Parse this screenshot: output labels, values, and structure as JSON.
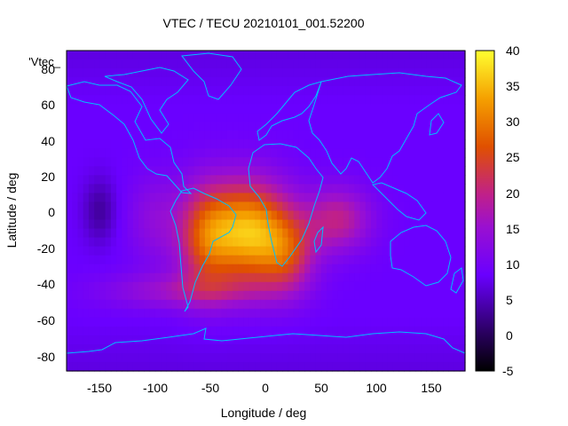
{
  "chart_data": {
    "type": "heatmap",
    "title": "VTEC / TECU 20210101_001.52200",
    "xlabel": "Longitude / deg",
    "ylabel": "Latitude / deg",
    "key_label": "'Vtec_",
    "xlim": [
      -180,
      180
    ],
    "ylim": [
      -90,
      90
    ],
    "x_ticks": [
      -150,
      -100,
      -50,
      0,
      50,
      100,
      150
    ],
    "y_ticks": [
      -80,
      -60,
      -40,
      -20,
      0,
      20,
      40,
      60,
      80
    ],
    "colorbar": {
      "range": [
        -5,
        40
      ],
      "ticks": [
        -5,
        0,
        5,
        10,
        15,
        20,
        25,
        30,
        35,
        40
      ],
      "palette": "gnuplot-rgbformulae-7-5-15",
      "colors": {
        "low": "#000000",
        "mid_low": "#6a00ff",
        "mid": "#c0208a",
        "mid_high": "#e05000",
        "high": "#ffff30"
      }
    },
    "field": {
      "description_units": "TECU",
      "background_value": 8.5,
      "features": [
        {
          "name": "atlantic_crest",
          "lon": -15,
          "lat": -12,
          "amplitude": 26
        },
        {
          "name": "south_america",
          "lon": -55,
          "lat": -15,
          "amplitude": 14
        },
        {
          "name": "africa_south",
          "lon": 20,
          "lat": -25,
          "amplitude": 11
        },
        {
          "name": "indian_ocean",
          "lon": 65,
          "lat": -5,
          "amplitude": 11
        },
        {
          "name": "east_pacific",
          "lon": -100,
          "lat": -5,
          "amplitude": 5
        },
        {
          "name": "south_pacific_belt",
          "lon": -75,
          "lat": -45,
          "amplitude": 7
        },
        {
          "name": "central_pacific_low",
          "lon": -150,
          "lat": 0,
          "amplitude": -5
        }
      ]
    },
    "coastline_color": "#00bfff"
  }
}
